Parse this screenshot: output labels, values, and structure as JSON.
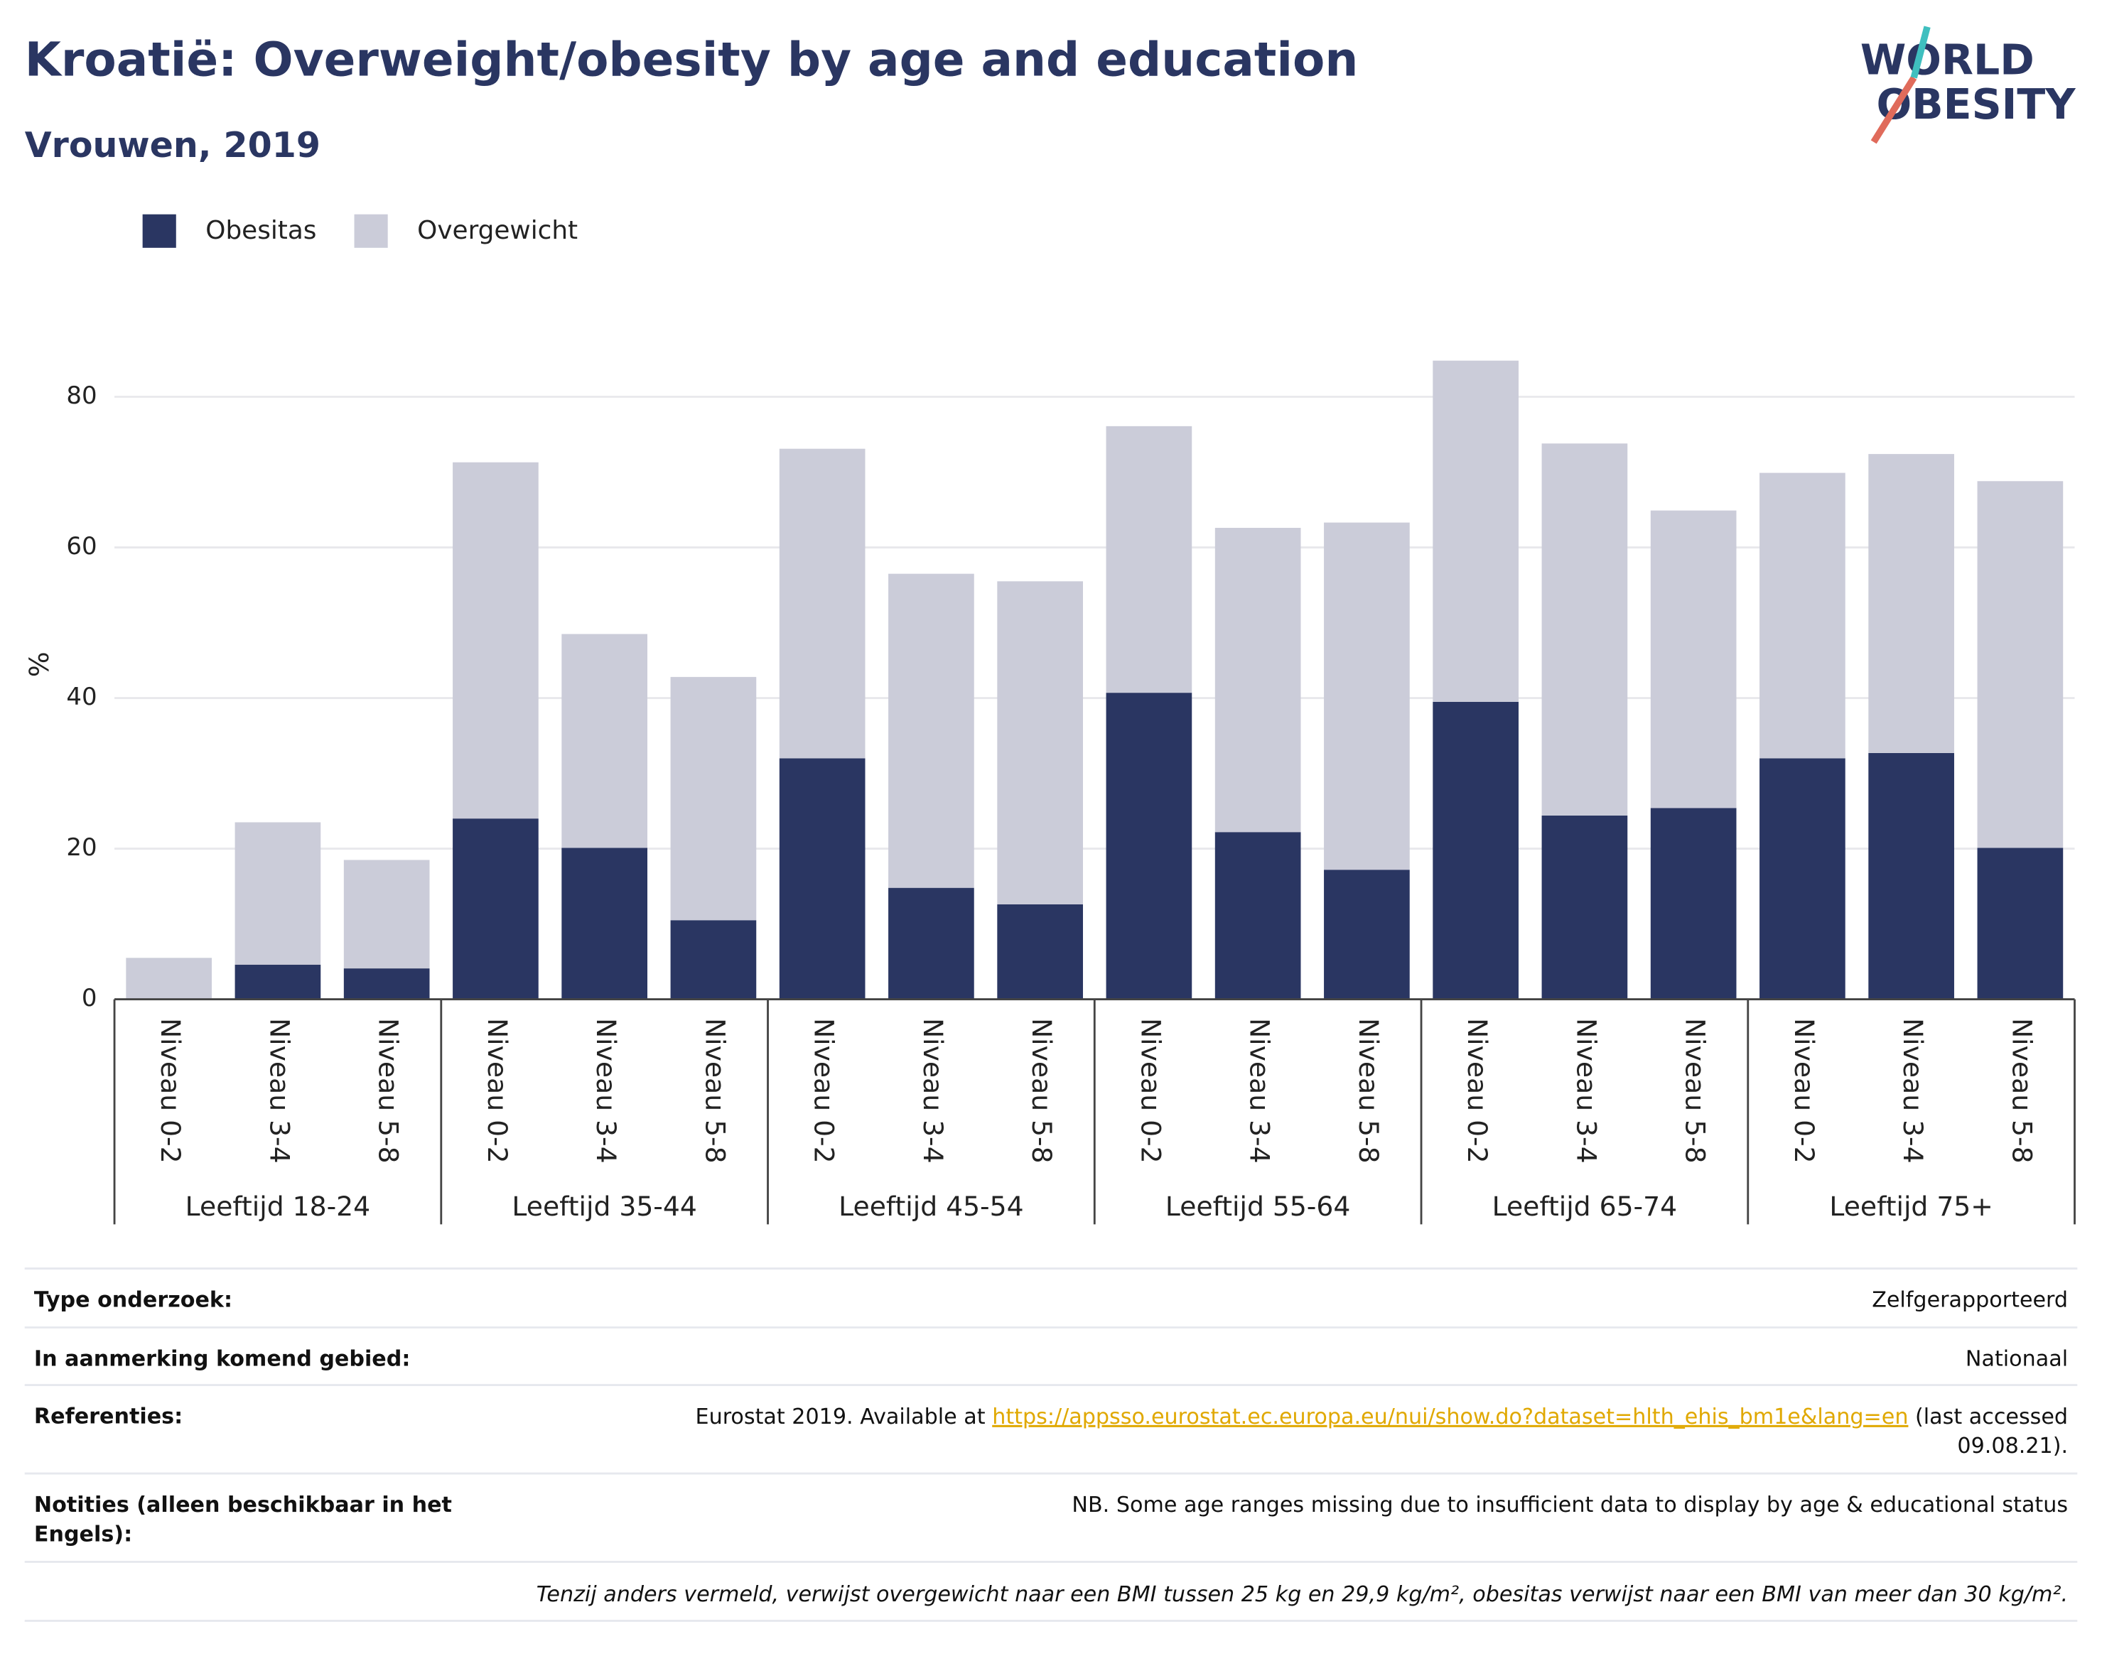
{
  "chart_data": {
    "type": "stacked_bar",
    "title": "Kroatië: Overweight/obesity by age and education",
    "subtitle": "Vrouwen, 2019",
    "y_label": "%",
    "categories": [
      "Niveau 0-2",
      "Niveau 3-4",
      "Niveau 5-8",
      "Niveau 0-2",
      "Niveau 3-4",
      "Niveau 5-8",
      "Niveau 0-2",
      "Niveau 3-4",
      "Niveau 5-8",
      "Niveau 0-2",
      "Niveau 3-4",
      "Niveau 5-8",
      "Niveau 0-2",
      "Niveau 3-4",
      "Niveau 5-8",
      "Niveau 0-2",
      "Niveau 3-4",
      "Niveau 5-8"
    ],
    "groups": [
      "Leeftijd 18-24",
      "Leeftijd 35-44",
      "Leeftijd 45-54",
      "Leeftijd 55-64",
      "Leeftijd 65-74",
      "Leeftijd 75+"
    ],
    "series": [
      {
        "name": "Obesitas",
        "color": "#2a3662",
        "values": [
          0,
          4.6,
          4.1,
          24.0,
          20.1,
          10.5,
          32.0,
          14.8,
          12.6,
          40.7,
          22.2,
          17.2,
          39.5,
          24.4,
          25.4,
          32.0,
          32.7,
          20.1
        ]
      },
      {
        "name": "Overgewicht",
        "color": "#cbccd9",
        "values": [
          5.5,
          18.9,
          14.4,
          47.3,
          28.4,
          32.3,
          41.1,
          41.7,
          42.9,
          35.4,
          40.4,
          46.1,
          45.3,
          49.4,
          39.5,
          37.9,
          39.7,
          48.7
        ]
      }
    ],
    "ylim": [
      0,
      90
    ],
    "yticks": [
      0,
      20,
      40,
      60,
      80
    ],
    "grid": true,
    "legend": "top-left"
  },
  "logo": {
    "line1": "WORLD",
    "line2": "OBESITY"
  },
  "table": {
    "rows": [
      {
        "label": [
          "Type onderzoek:"
        ],
        "value": [
          "Zelfgerapporteerd"
        ]
      },
      {
        "label": [
          "In aanmerking komend gebied:"
        ],
        "value": [
          "Nationaal"
        ]
      },
      {
        "label": [
          "Referenties:"
        ],
        "value": [
          "Eurostat 2019. Available at ",
          "https://appsso.eurostat.ec.europa.eu/nui/show.do?dataset=hlth_ehis_bm1e&lang=en",
          " (last accessed",
          "09.08.21)."
        ]
      },
      {
        "label": [
          "Notities (alleen beschikbaar in het",
          "Engels):"
        ],
        "value": [
          "NB. Some age ranges missing due to insufficient data to display by age & educational status"
        ]
      }
    ],
    "footnote": "Tenzij anders vermeld, verwijst overgewicht naar een BMI tussen 25 kg en 29,9 kg/m², obesitas verwijst naar een BMI van meer dan 30 kg/m²."
  }
}
